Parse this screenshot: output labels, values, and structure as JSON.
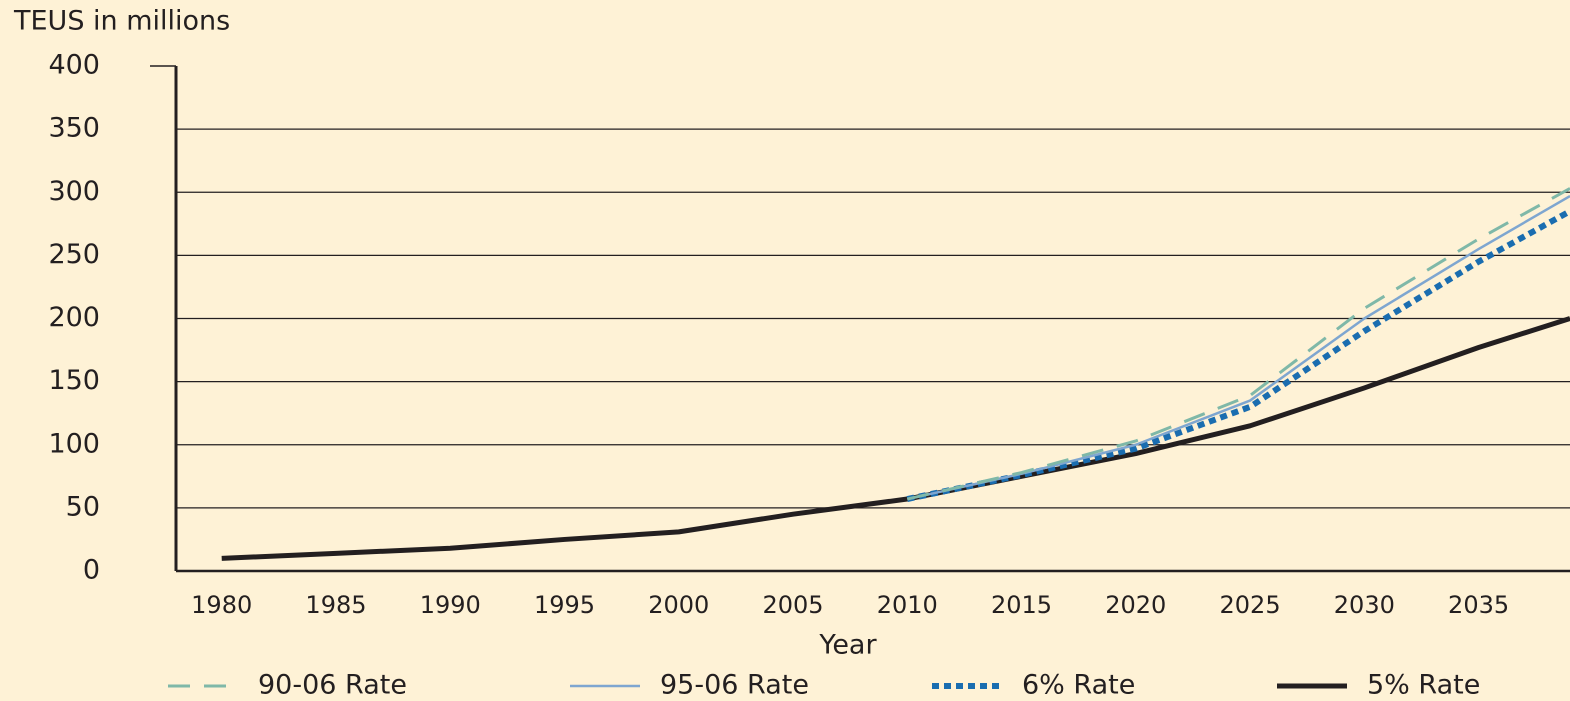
{
  "chart_data": {
    "type": "line",
    "y_label": "TEUS in millions",
    "x_label": "Year",
    "x": [
      1980,
      1985,
      1990,
      1995,
      2000,
      2005,
      2010,
      2015,
      2020,
      2025,
      2030,
      2035,
      2039
    ],
    "series": [
      {
        "name": "90-06 Rate",
        "color": "#7fb8a8",
        "dash": "dashed",
        "values": [
          null,
          null,
          null,
          null,
          null,
          null,
          57,
          78,
          103,
          139,
          208,
          263,
          303
        ]
      },
      {
        "name": "95-06 Rate",
        "color": "#7ea6d0",
        "dash": "solid",
        "values": [
          null,
          null,
          null,
          null,
          null,
          null,
          57,
          77,
          100,
          135,
          200,
          255,
          297
        ]
      },
      {
        "name": "6% Rate",
        "color": "#1a6db0",
        "dash": "dotted",
        "values": [
          null,
          null,
          null,
          null,
          null,
          null,
          57,
          76,
          97,
          130,
          190,
          245,
          285
        ]
      },
      {
        "name": "5% Rate",
        "color": "#231f20",
        "dash": "solid-thick",
        "values": [
          10,
          14,
          18,
          25,
          31,
          45,
          57,
          75,
          93,
          115,
          145,
          177,
          200
        ]
      }
    ],
    "xlim": [
      1978,
      2039
    ],
    "xticks": [
      1980,
      1985,
      1990,
      1995,
      2000,
      2005,
      2010,
      2015,
      2020,
      2025,
      2030,
      2035
    ],
    "ylim": [
      0,
      400
    ],
    "yticks": [
      0,
      50,
      100,
      150,
      200,
      250,
      300,
      350,
      400
    ],
    "grid": true,
    "legend": "bottom"
  }
}
